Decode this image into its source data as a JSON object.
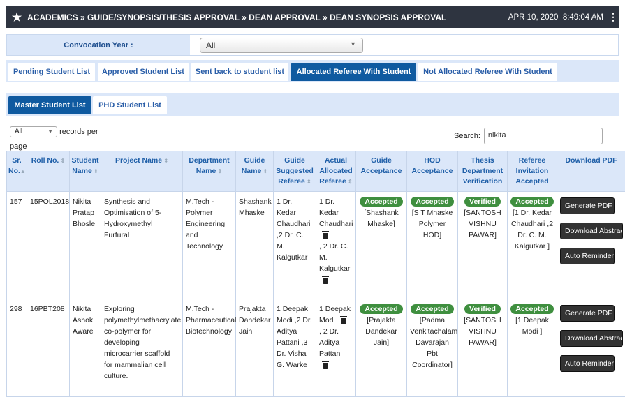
{
  "header": {
    "breadcrumb": "ACADEMICS » GUIDE/SYNOPSIS/THESIS APPROVAL » DEAN APPROVAL » DEAN SYNOPSIS APPROVAL",
    "date": "APR 10, 2020",
    "time": "8:49:04 AM"
  },
  "convocation": {
    "label": "Convocation Year :",
    "value": "All"
  },
  "tabs": [
    "Pending Student List",
    "Approved Student List",
    "Sent back to student list",
    "Allocated Referee With Student",
    "Not Allocated Referee With Student"
  ],
  "subtabs": [
    "Master Student List",
    "PHD Student List"
  ],
  "controls": {
    "length_value": "All",
    "length_label": "records per",
    "length_label2": "page",
    "search_label": "Search:",
    "search_value": "nikita"
  },
  "columns": [
    "Sr. No.",
    "Roll No.",
    "Student Name",
    "Project Name",
    "Department Name",
    "Guide Name",
    "Guide Suggested Referee",
    "Actual Allocated Referee",
    "Guide Acceptance",
    "HOD Acceptance",
    "Thesis Department Verification",
    "Referee Invitation Accepted",
    "Download PDF"
  ],
  "rows": [
    {
      "sr": "157",
      "roll": "15POL2018",
      "name": "Nikita Pratap Bhosle",
      "project": "Synthesis and Optimisation of 5-Hydroxymethyl Furfural",
      "dept": "M.Tech - Polymer Engineering and Technology",
      "guide": "Shashank Mhaske",
      "suggested": "1 Dr. Kedar Chaudhari ,2 Dr. C. M. Kalgutkar",
      "actual1": "1 Dr. Kedar Chaudhari",
      "actual_sep": ",",
      "actual2": "2 Dr. C. M. Kalgutkar",
      "guide_acc": "Accepted",
      "guide_acc_by": "[Shashank Mhaske]",
      "hod_acc": "Accepted",
      "hod_acc_by": "[S T Mhaske Polymer HOD]",
      "thesis": "Verified",
      "thesis_by": "[SANTOSH VISHNU PAWAR]",
      "referee": "Accepted",
      "referee_by": "[1 Dr. Kedar Chaudhari ,2 Dr. C. M. Kalgutkar ]"
    },
    {
      "sr": "298",
      "roll": "16PBT208",
      "name": "Nikita Ashok Aware",
      "project": "Exploring polymethylmethacrylate co-polymer for developing microcarrier scaffold for mammalian cell culture.",
      "dept": "M.Tech - Pharmaceutical Biotechnology",
      "guide": "Prajakta Dandekar Jain",
      "suggested": "1 Deepak Modi ,2 Dr. Aditya Pattani ,3 Dr. Vishal G. Warke",
      "actual1": "1 Deepak Modi",
      "actual_sep": ",",
      "actual2": "2 Dr. Aditya Pattani",
      "guide_acc": "Accepted",
      "guide_acc_by": "[Prajakta Dandekar Jain]",
      "hod_acc": "Accepted",
      "hod_acc_by": "[Padma Venkitachalam Davarajan Pbt Coordinator]",
      "thesis": "Verified",
      "thesis_by": "[SANTOSH VISHNU PAWAR]",
      "referee": "Accepted",
      "referee_by": "[1 Deepak Modi ]"
    }
  ],
  "buttons": {
    "generate": "Generate PDF",
    "download": "Download Abstract",
    "reminder": "Auto Reminder"
  },
  "colors": {
    "header_bg": "#2e3440",
    "tab_active": "#0f5aa0",
    "accent": "#dbe7f9",
    "badge": "#3f8f3f"
  },
  "icons": [
    "star-icon",
    "kebab-menu-icon",
    "sort-icon",
    "trash-icon",
    "chevron-down-icon"
  ]
}
